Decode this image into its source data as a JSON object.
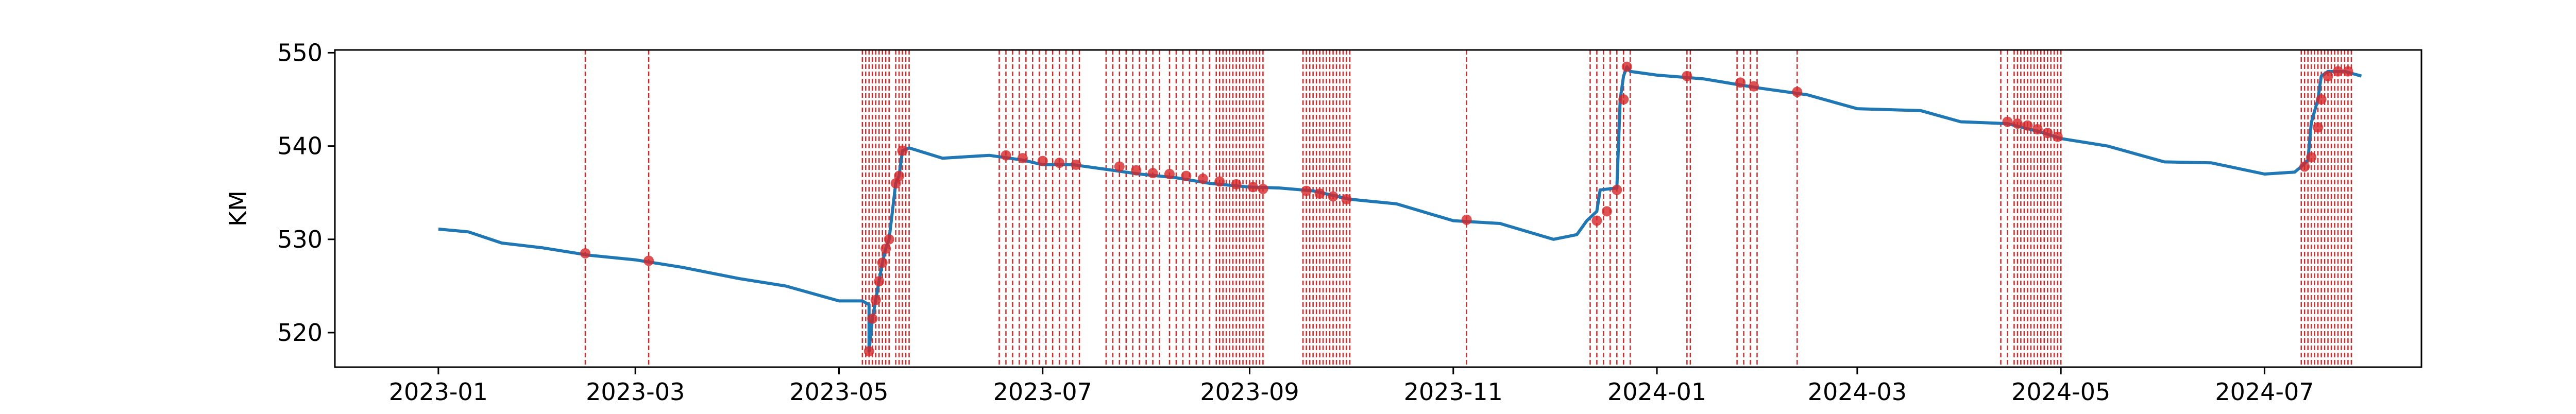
{
  "chart_data": {
    "type": "line",
    "title": "",
    "xlabel": "",
    "ylabel": "KM",
    "xlim": [
      "2022-12-01",
      "2024-08-17"
    ],
    "ylim": [
      516.3,
      550.3
    ],
    "x_ticks": [
      "2023-01",
      "2023-03",
      "2023-05",
      "2023-07",
      "2023-09",
      "2023-11",
      "2024-01",
      "2024-03",
      "2024-05",
      "2024-07"
    ],
    "y_ticks": [
      520,
      530,
      540,
      550
    ],
    "grid": false,
    "legend": "none",
    "series": [
      {
        "style": "line",
        "color": "#1f77b4",
        "x": [
          "2023-01-01",
          "2023-01-10",
          "2023-01-20",
          "2023-02-01",
          "2023-02-15",
          "2023-03-01",
          "2023-03-15",
          "2023-04-01",
          "2023-04-15",
          "2023-05-01",
          "2023-05-08",
          "2023-05-10",
          "2023-05-10",
          "2023-05-11",
          "2023-05-12",
          "2023-05-13",
          "2023-05-14",
          "2023-05-15",
          "2023-05-16",
          "2023-05-18",
          "2023-05-19",
          "2023-05-20",
          "2023-05-22",
          "2023-06-01",
          "2023-06-15",
          "2023-06-25",
          "2023-07-01",
          "2023-07-10",
          "2023-07-20",
          "2023-07-30",
          "2023-08-10",
          "2023-08-20",
          "2023-09-01",
          "2023-09-10",
          "2023-09-20",
          "2023-10-01",
          "2023-10-15",
          "2023-11-01",
          "2023-11-15",
          "2023-12-01",
          "2023-12-08",
          "2023-12-11",
          "2023-12-14",
          "2023-12-15",
          "2023-12-20",
          "2023-12-21",
          "2023-12-22",
          "2023-12-23",
          "2023-12-24",
          "2024-01-01",
          "2024-01-15",
          "2024-01-25",
          "2024-02-01",
          "2024-02-15",
          "2024-03-01",
          "2024-03-20",
          "2024-04-01",
          "2024-04-15",
          "2024-04-25",
          "2024-05-01",
          "2024-05-15",
          "2024-06-01",
          "2024-06-15",
          "2024-07-01",
          "2024-07-10",
          "2024-07-12",
          "2024-07-14",
          "2024-07-15",
          "2024-07-17",
          "2024-07-18",
          "2024-07-20",
          "2024-07-25",
          "2024-07-30"
        ],
        "y": [
          531.1,
          530.8,
          529.6,
          529.1,
          528.3,
          527.8,
          527.0,
          525.8,
          525.0,
          523.4,
          523.4,
          523.0,
          518.0,
          521.5,
          523.5,
          525.5,
          527.5,
          529.0,
          530.0,
          536.0,
          536.8,
          539.5,
          539.8,
          538.7,
          539.0,
          538.5,
          538.0,
          538.0,
          537.5,
          537.0,
          536.6,
          536.0,
          535.6,
          535.5,
          535.2,
          534.3,
          533.8,
          532.0,
          531.7,
          530.0,
          530.5,
          532.0,
          533.0,
          535.3,
          535.5,
          545.0,
          547.5,
          548.5,
          548.0,
          547.6,
          547.2,
          546.6,
          546.2,
          545.5,
          544.0,
          543.8,
          542.6,
          542.4,
          541.5,
          540.8,
          540.0,
          538.3,
          538.2,
          537.0,
          537.2,
          537.8,
          538.5,
          542.5,
          545.0,
          547.5,
          548.0,
          548.0,
          547.5
        ]
      },
      {
        "style": "markers",
        "color": "#d62728",
        "x": [
          "2023-02-14",
          "2023-03-05",
          "2023-05-10",
          "2023-05-11",
          "2023-05-12",
          "2023-05-13",
          "2023-05-14",
          "2023-05-15",
          "2023-05-16",
          "2023-05-18",
          "2023-05-19",
          "2023-05-20",
          "2023-06-20",
          "2023-06-25",
          "2023-07-01",
          "2023-07-06",
          "2023-07-11",
          "2023-07-24",
          "2023-07-29",
          "2023-08-03",
          "2023-08-08",
          "2023-08-13",
          "2023-08-18",
          "2023-08-23",
          "2023-08-28",
          "2023-09-02",
          "2023-09-05",
          "2023-09-18",
          "2023-09-22",
          "2023-09-26",
          "2023-09-30",
          "2023-11-05",
          "2023-12-14",
          "2023-12-17",
          "2023-12-20",
          "2023-12-22",
          "2023-12-23",
          "2024-01-10",
          "2024-01-26",
          "2024-01-30",
          "2024-02-12",
          "2024-04-15",
          "2024-04-18",
          "2024-04-21",
          "2024-04-24",
          "2024-04-27",
          "2024-04-30",
          "2024-07-13",
          "2024-07-15",
          "2024-07-17",
          "2024-07-18",
          "2024-07-20",
          "2024-07-23",
          "2024-07-26"
        ],
        "y": [
          528.5,
          527.7,
          518.0,
          521.5,
          523.5,
          525.5,
          527.5,
          529.0,
          530.0,
          536.0,
          536.8,
          539.5,
          539.0,
          538.7,
          538.4,
          538.2,
          538.0,
          537.8,
          537.4,
          537.1,
          537.0,
          536.8,
          536.5,
          536.2,
          535.9,
          535.6,
          535.4,
          535.2,
          534.9,
          534.6,
          534.3,
          532.1,
          532.0,
          533.0,
          535.3,
          545.0,
          548.5,
          547.5,
          546.8,
          546.4,
          545.8,
          542.6,
          542.4,
          542.2,
          541.8,
          541.4,
          541.0,
          537.8,
          538.8,
          542.0,
          545.0,
          547.5,
          548.0,
          548.0
        ]
      }
    ],
    "vlines": {
      "color": "#d62728",
      "style": "dashed",
      "dates": [
        "2023-02-14",
        "2023-03-05",
        "2023-05-08",
        "2023-05-09",
        "2023-05-10",
        "2023-05-11",
        "2023-05-12",
        "2023-05-13",
        "2023-05-14",
        "2023-05-15",
        "2023-05-16",
        "2023-05-18",
        "2023-05-19",
        "2023-05-20",
        "2023-05-21",
        "2023-05-22",
        "2023-06-18",
        "2023-06-20",
        "2023-06-22",
        "2023-06-24",
        "2023-06-26",
        "2023-06-28",
        "2023-06-30",
        "2023-07-02",
        "2023-07-04",
        "2023-07-06",
        "2023-07-08",
        "2023-07-10",
        "2023-07-12",
        "2023-07-20",
        "2023-07-22",
        "2023-07-24",
        "2023-07-26",
        "2023-07-28",
        "2023-07-30",
        "2023-08-01",
        "2023-08-03",
        "2023-08-05",
        "2023-08-08",
        "2023-08-10",
        "2023-08-12",
        "2023-08-14",
        "2023-08-16",
        "2023-08-18",
        "2023-08-20",
        "2023-08-22",
        "2023-08-23",
        "2023-08-24",
        "2023-08-25",
        "2023-08-26",
        "2023-08-27",
        "2023-08-28",
        "2023-08-29",
        "2023-08-30",
        "2023-08-31",
        "2023-09-01",
        "2023-09-02",
        "2023-09-03",
        "2023-09-04",
        "2023-09-05",
        "2023-09-17",
        "2023-09-18",
        "2023-09-19",
        "2023-09-20",
        "2023-09-21",
        "2023-09-22",
        "2023-09-23",
        "2023-09-24",
        "2023-09-25",
        "2023-09-26",
        "2023-09-27",
        "2023-09-28",
        "2023-09-29",
        "2023-09-30",
        "2023-10-01",
        "2023-11-05",
        "2023-12-12",
        "2023-12-14",
        "2023-12-16",
        "2023-12-18",
        "2023-12-20",
        "2023-12-22",
        "2023-12-24",
        "2024-01-10",
        "2024-01-11",
        "2024-01-25",
        "2024-01-27",
        "2024-01-29",
        "2024-01-31",
        "2024-02-12",
        "2024-04-13",
        "2024-04-15",
        "2024-04-17",
        "2024-04-18",
        "2024-04-19",
        "2024-04-20",
        "2024-04-21",
        "2024-04-22",
        "2024-04-23",
        "2024-04-24",
        "2024-04-25",
        "2024-04-26",
        "2024-04-27",
        "2024-04-28",
        "2024-04-29",
        "2024-04-30",
        "2024-05-01",
        "2024-07-12",
        "2024-07-13",
        "2024-07-14",
        "2024-07-15",
        "2024-07-16",
        "2024-07-17",
        "2024-07-18",
        "2024-07-19",
        "2024-07-20",
        "2024-07-21",
        "2024-07-22",
        "2024-07-23",
        "2024-07-24",
        "2024-07-25",
        "2024-07-26",
        "2024-07-27"
      ]
    }
  }
}
